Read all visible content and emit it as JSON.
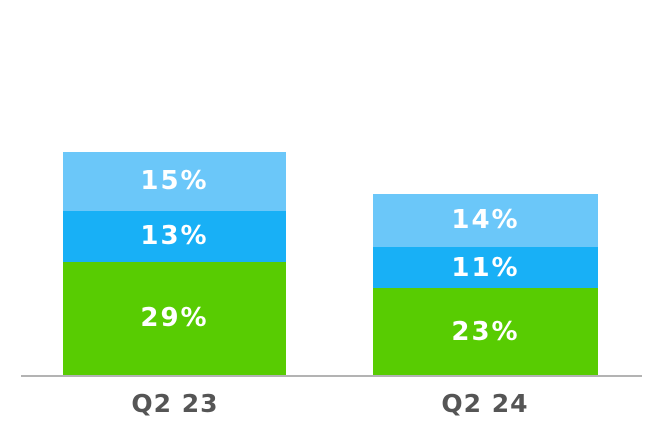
{
  "chart_data": {
    "type": "bar",
    "stacked": true,
    "title": "",
    "categories": [
      "Q2 23",
      "Q2 24"
    ],
    "series": [
      {
        "name": "green-bottom-segment",
        "color": "#58CC02",
        "values": [
          29,
          23
        ],
        "labels": [
          "29%",
          "23%"
        ]
      },
      {
        "name": "blue-middle-segment",
        "color": "#18B0F6",
        "values": [
          13,
          11
        ],
        "labels": [
          "13%",
          "11%"
        ]
      },
      {
        "name": "light-blue-top-segment",
        "color": "#6BC7F9",
        "values": [
          15,
          14
        ],
        "labels": [
          "15%",
          "14%"
        ]
      }
    ],
    "value_format": "percent",
    "legend": "none",
    "grid": "off",
    "xlabel": "",
    "ylabel": "",
    "colors": {
      "axis_line": "#B3B3B3",
      "category_label": "#555555",
      "data_label": "#FFFFFF",
      "background": "#FFFFFF"
    }
  }
}
